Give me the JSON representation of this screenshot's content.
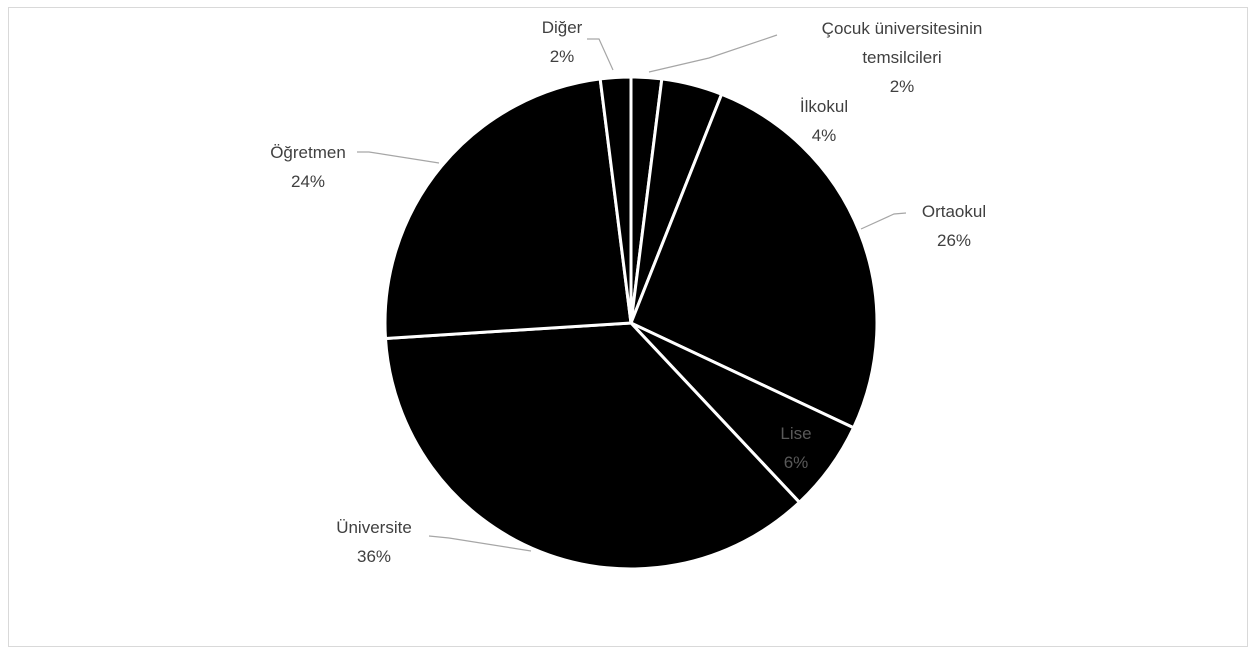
{
  "chart_data": {
    "type": "pie",
    "start_angle_deg": 0,
    "slice_fill": "#000000",
    "slice_stroke": "#ffffff",
    "leader_color": "#a6a6a6",
    "label_color": "#404040",
    "inner_label_color": "#595959",
    "slices": [
      {
        "label": "Çocuk üniversitesinin temsilcileri",
        "value": 2,
        "value_label": "2%"
      },
      {
        "label": "İlkokul",
        "value": 4,
        "value_label": "4%"
      },
      {
        "label": "Ortaokul",
        "value": 26,
        "value_label": "26%"
      },
      {
        "label": "Lise",
        "value": 6,
        "value_label": "6%"
      },
      {
        "label": "Üniversite",
        "value": 36,
        "value_label": "36%"
      },
      {
        "label": "Öğretmen",
        "value": 24,
        "value_label": "24%"
      },
      {
        "label": "Diğer",
        "value": 2,
        "value_label": "2%"
      }
    ]
  }
}
